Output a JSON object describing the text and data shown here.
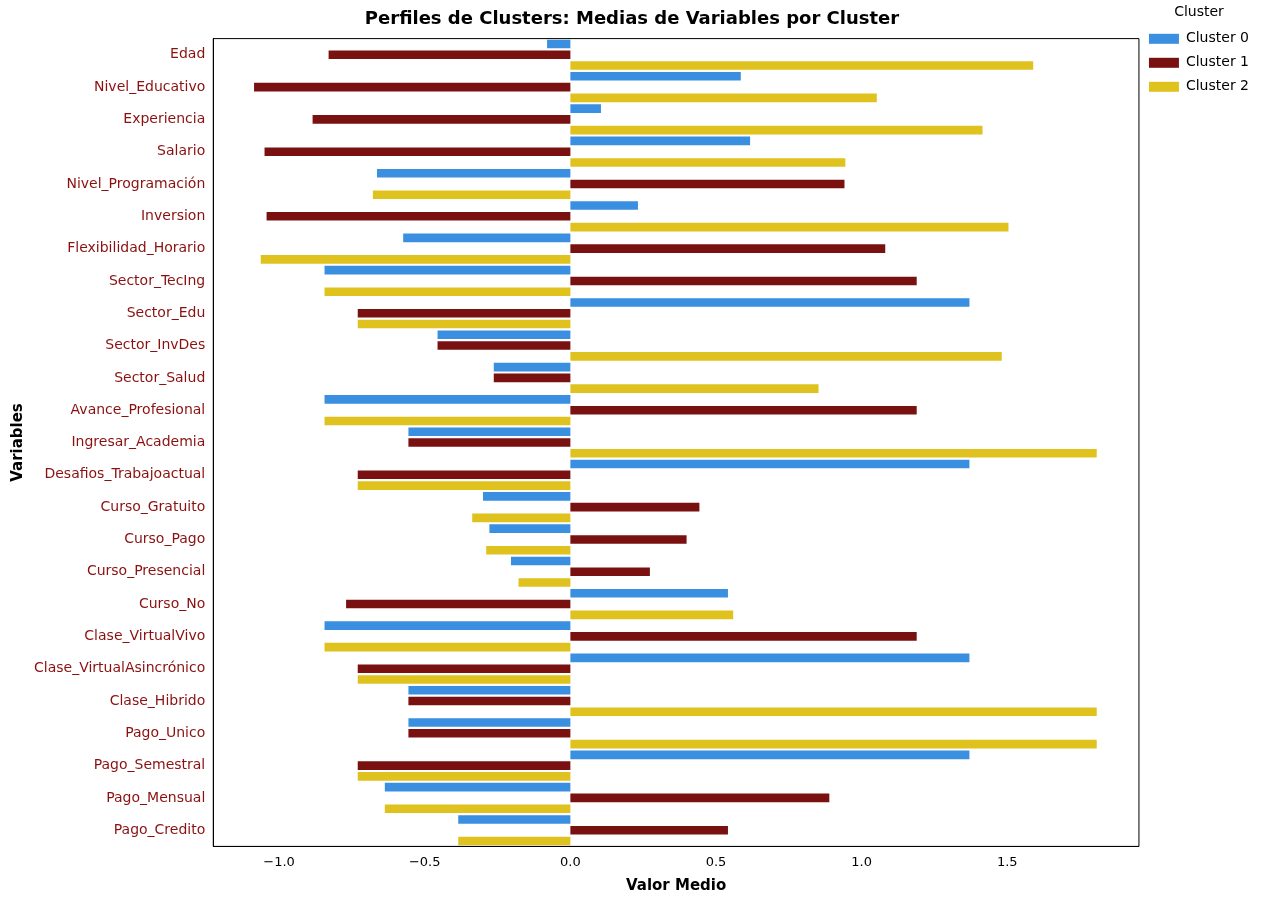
{
  "chart_data": {
    "type": "bar",
    "orientation": "horizontal",
    "title": "Perfiles de Clusters: Medias de Variables por Cluster",
    "xlabel": "Valor Medio",
    "ylabel": "Variables",
    "legend_title": "Cluster",
    "legend": "top right",
    "grid": false,
    "categories": [
      "Edad",
      "Nivel_Educativo",
      "Experiencia",
      "Salario",
      "Nivel_Programación",
      "Inversion",
      "Flexibilidad_Horario",
      "Sector_TecIng",
      "Sector_Edu",
      "Sector_InvDes",
      "Sector_Salud",
      "Avance_Profesional",
      "Ingresar_Academia",
      "Desafios_Trabajoactual",
      "Curso_Gratuito",
      "Curso_Pago",
      "Curso_Presencial",
      "Curso_No",
      "Clase_VirtualVivo",
      "Clase_VirtualAsincrónico",
      "Clase_Hibrido",
      "Pago_Unico",
      "Pago_Semestral",
      "Pago_Mensual",
      "Pago_Credito"
    ],
    "xlim": [
      -1.226,
      1.952
    ],
    "xticks": [
      {
        "value": -1,
        "label": "−1.0"
      },
      {
        "value": -0.5,
        "label": "−0.5"
      },
      {
        "value": 0,
        "label": "0.0"
      },
      {
        "value": 0.5,
        "label": "0.5"
      },
      {
        "value": 1,
        "label": "1.0"
      },
      {
        "value": 1.5,
        "label": "1.5"
      }
    ],
    "series": [
      {
        "name": "Cluster 0",
        "color": "#3a8fe0",
        "values": [
          -0.08,
          0.585,
          0.105,
          0.617,
          -0.664,
          0.232,
          -0.574,
          -0.844,
          1.37,
          -0.456,
          -0.263,
          -0.844,
          -0.556,
          1.37,
          -0.3,
          -0.278,
          -0.204,
          0.541,
          -0.844,
          1.37,
          -0.556,
          -0.556,
          1.37,
          -0.637,
          -0.385
        ]
      },
      {
        "name": "Cluster 1",
        "color": "#7a1111",
        "values": [
          -0.83,
          -1.086,
          -0.885,
          -1.05,
          0.941,
          -1.043,
          1.081,
          1.189,
          -0.73,
          -0.456,
          -0.263,
          1.189,
          -0.556,
          -0.73,
          0.443,
          0.399,
          0.273,
          -0.77,
          1.189,
          -0.73,
          -0.556,
          -0.556,
          -0.73,
          0.889,
          0.541
        ]
      },
      {
        "name": "Cluster 2",
        "color": "#e0c21f",
        "values": [
          1.589,
          1.052,
          1.415,
          0.944,
          -0.678,
          1.504,
          -1.063,
          -0.844,
          -0.73,
          1.481,
          0.852,
          -0.844,
          1.807,
          -0.73,
          -0.337,
          -0.289,
          -0.178,
          0.559,
          -0.844,
          -0.73,
          1.807,
          1.807,
          -0.73,
          -0.637,
          -0.385
        ]
      }
    ]
  }
}
